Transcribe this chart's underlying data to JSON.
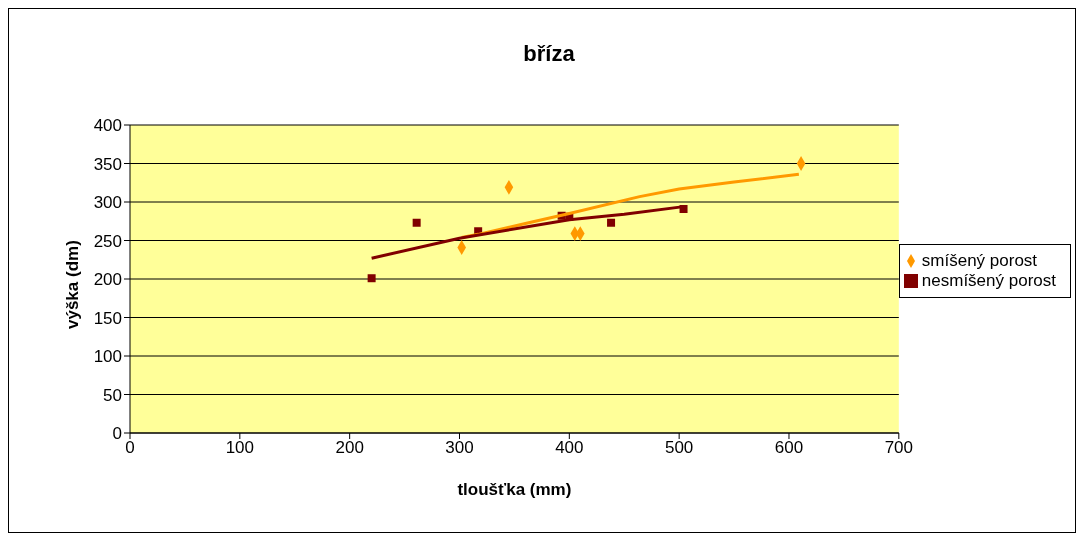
{
  "chart_data": {
    "type": "scatter",
    "title": "bříza",
    "xlabel": "tloušťka (mm)",
    "ylabel": "výška (dm)",
    "xlim": [
      0,
      700
    ],
    "xticks": [
      0,
      100,
      200,
      300,
      400,
      500,
      600,
      700
    ],
    "ylim": [
      0,
      400
    ],
    "yticks": [
      0,
      50,
      100,
      150,
      200,
      250,
      300,
      350,
      400
    ],
    "grid": "y",
    "legend": "right",
    "series": [
      {
        "name": "smíšený porost",
        "color": "#ff9900",
        "marker": "diamond",
        "x": [
          302,
          345,
          395,
          405,
          410,
          611
        ],
        "values": [
          241,
          319,
          null,
          259,
          259,
          350
        ]
      },
      {
        "name": "nesmíšený porost",
        "color": "#800000",
        "marker": "square",
        "x": [
          220,
          261,
          317,
          393,
          400,
          438,
          504
        ],
        "values": [
          201,
          273,
          262,
          282,
          281,
          273,
          291
        ]
      },
      {
        "type": "line",
        "color": "#ff9900",
        "marker": "none",
        "x": [
          302,
          317,
          360,
          400,
          464,
          500,
          550,
          609
        ],
        "values": [
          254,
          258,
          272,
          285,
          307,
          317,
          326,
          336
        ]
      },
      {
        "type": "line",
        "color": "#800000",
        "marker": "none",
        "x": [
          220,
          300,
          400,
          450,
          504
        ],
        "values": [
          227,
          253,
          277,
          284,
          294
        ]
      }
    ]
  }
}
